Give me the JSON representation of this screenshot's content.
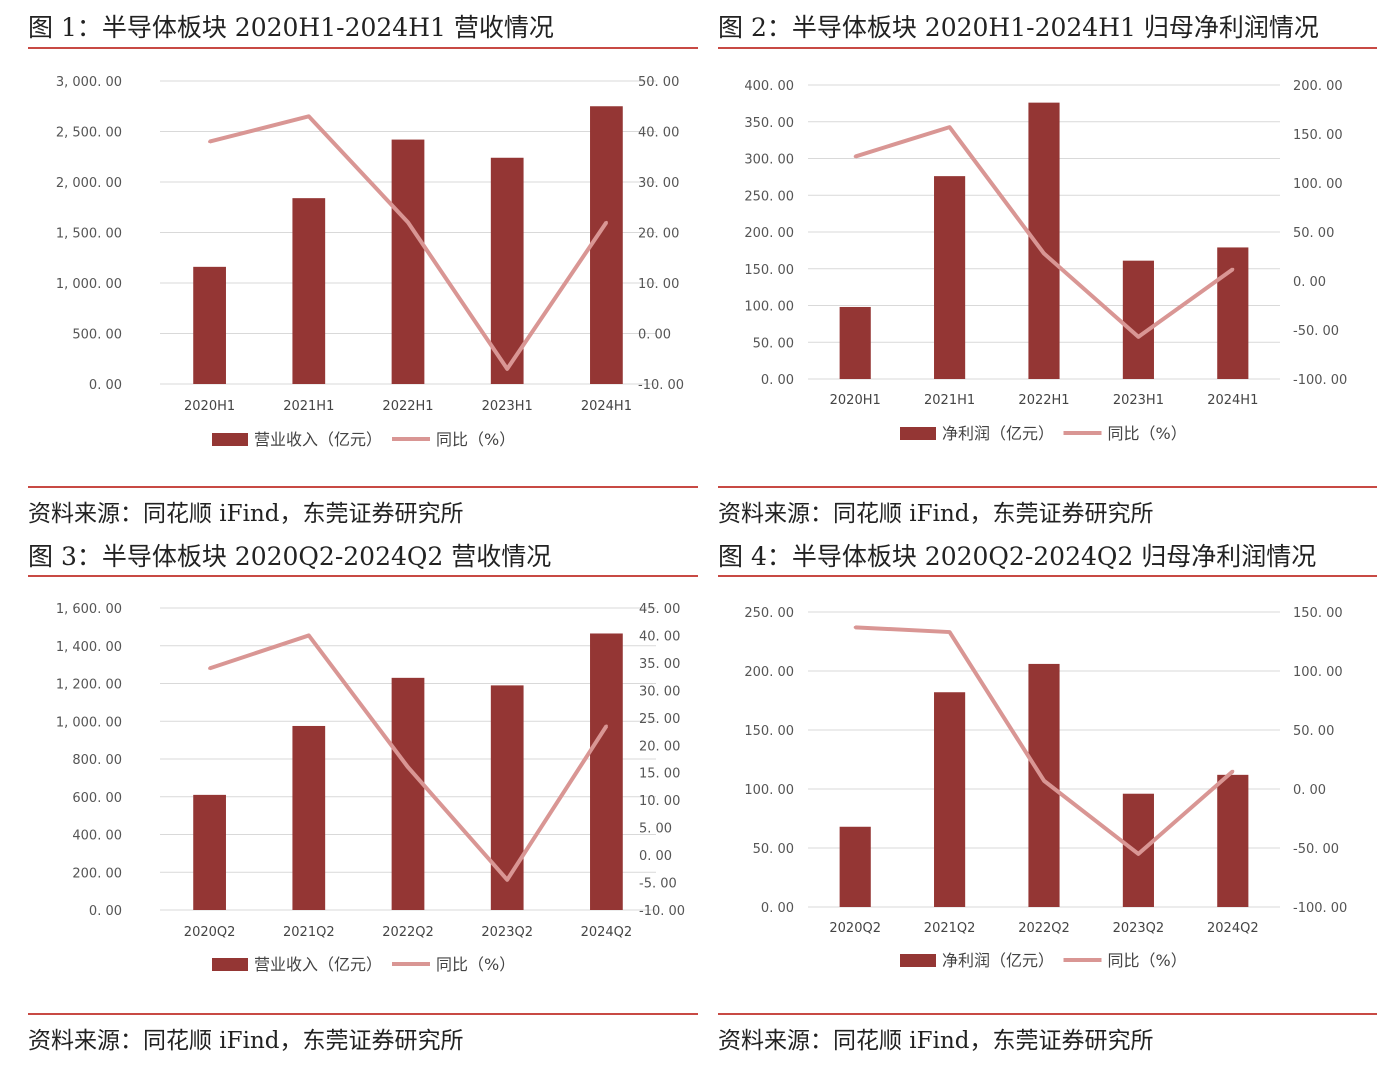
{
  "colors": {
    "bar": "#943634",
    "line": "#d99694",
    "rule": "#c84a44",
    "grid": "#d9d9d9"
  },
  "chart_data": [
    {
      "id": "fig1",
      "type": "bar",
      "title": "图 1：半导体板块 2020H1-2024H1 营收情况",
      "source": "资料来源：同花顺 iFind，东莞证券研究所",
      "categories": [
        "2020H1",
        "2021H1",
        "2022H1",
        "2023H1",
        "2024H1"
      ],
      "series": [
        {
          "name": "营业收入（亿元）",
          "type": "bar",
          "axis": "left",
          "values": [
            1160,
            1840,
            2420,
            2240,
            2750
          ]
        },
        {
          "name": "同比（%）",
          "type": "line",
          "axis": "right",
          "values": [
            38,
            43,
            22,
            -7,
            22
          ]
        }
      ],
      "y_left": {
        "min": 0,
        "max": 3000,
        "ticks": [
          "0. 00",
          "500. 00",
          "1, 000. 00",
          "1, 500. 00",
          "2, 000. 00",
          "2, 500. 00",
          "3, 000. 00"
        ]
      },
      "y_right": {
        "min": -10,
        "max": 50,
        "ticks": [
          "-10. 00",
          "0. 00",
          "10. 00",
          "20. 00",
          "30. 00",
          "40. 00",
          "50. 00"
        ]
      },
      "legend_position": "bottom"
    },
    {
      "id": "fig2",
      "type": "bar",
      "title": "图 2：半导体板块 2020H1-2024H1 归母净利润情况",
      "source": "资料来源：同花顺 iFind，东莞证券研究所",
      "categories": [
        "2020H1",
        "2021H1",
        "2022H1",
        "2023H1",
        "2024H1"
      ],
      "series": [
        {
          "name": "净利润（亿元）",
          "type": "bar",
          "axis": "left",
          "values": [
            98,
            276,
            376,
            161,
            179
          ]
        },
        {
          "name": "同比（%）",
          "type": "line",
          "axis": "right",
          "values": [
            127,
            157,
            28,
            -57,
            12
          ]
        }
      ],
      "y_left": {
        "min": 0,
        "max": 400,
        "ticks": [
          "0. 00",
          "50. 00",
          "100. 00",
          "150. 00",
          "200. 00",
          "250. 00",
          "300. 00",
          "350. 00",
          "400. 00"
        ]
      },
      "y_right": {
        "min": -100,
        "max": 200,
        "ticks": [
          "-100. 00",
          "-50. 00",
          "0. 00",
          "50. 00",
          "100. 00",
          "150. 00",
          "200. 00"
        ]
      },
      "legend_position": "bottom"
    },
    {
      "id": "fig3",
      "type": "bar",
      "title": "图 3：半导体板块 2020Q2-2024Q2 营收情况",
      "source": "资料来源：同花顺 iFind，东莞证券研究所",
      "categories": [
        "2020Q2",
        "2021Q2",
        "2022Q2",
        "2023Q2",
        "2024Q2"
      ],
      "series": [
        {
          "name": "营业收入（亿元）",
          "type": "bar",
          "axis": "left",
          "values": [
            610,
            975,
            1230,
            1190,
            1465
          ]
        },
        {
          "name": "同比（%）",
          "type": "line",
          "axis": "right",
          "values": [
            34,
            40,
            16,
            -4.5,
            23.5
          ]
        }
      ],
      "y_left": {
        "min": 0,
        "max": 1600,
        "ticks": [
          "0. 00",
          "200. 00",
          "400. 00",
          "600. 00",
          "800. 00",
          "1, 000. 00",
          "1, 200. 00",
          "1, 400. 00",
          "1, 600. 00"
        ]
      },
      "y_right": {
        "min": -10,
        "max": 45,
        "ticks": [
          "-10. 00",
          "-5. 00",
          "0. 00",
          "5. 00",
          "10. 00",
          "15. 00",
          "20. 00",
          "25. 00",
          "30. 00",
          "35. 00",
          "40. 00",
          "45. 00"
        ]
      },
      "legend_position": "bottom"
    },
    {
      "id": "fig4",
      "type": "bar",
      "title": "图 4：半导体板块 2020Q2-2024Q2 归母净利润情况",
      "source": "资料来源：同花顺 iFind，东莞证券研究所",
      "categories": [
        "2020Q2",
        "2021Q2",
        "2022Q2",
        "2023Q2",
        "2024Q2"
      ],
      "series": [
        {
          "name": "净利润（亿元）",
          "type": "bar",
          "axis": "left",
          "values": [
            68,
            182,
            206,
            96,
            112
          ]
        },
        {
          "name": "同比（%）",
          "type": "line",
          "axis": "right",
          "values": [
            137,
            133,
            7,
            -55,
            15
          ]
        }
      ],
      "y_left": {
        "min": 0,
        "max": 250,
        "ticks": [
          "0. 00",
          "50. 00",
          "100. 00",
          "150. 00",
          "200. 00",
          "250. 00"
        ]
      },
      "y_right": {
        "min": -100,
        "max": 150,
        "ticks": [
          "-100. 00",
          "-50. 00",
          "0. 00",
          "50. 00",
          "100. 00",
          "150. 00"
        ]
      },
      "legend_position": "bottom"
    }
  ]
}
